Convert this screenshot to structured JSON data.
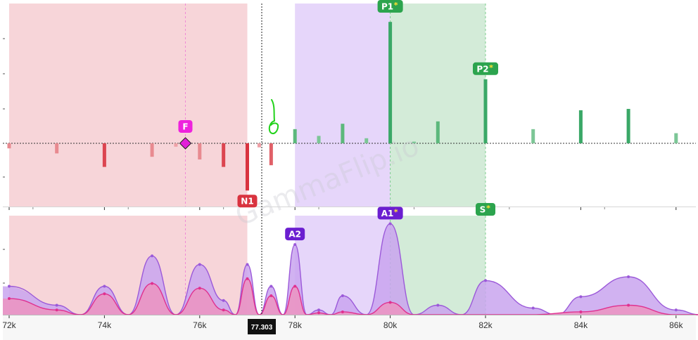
{
  "chart_data": {
    "type": "bar",
    "watermark": "GammaFlip.io",
    "x_unit_ticks": [
      "72k",
      "74k",
      "76k",
      "78k",
      "80k",
      "82k",
      "84k",
      "86k"
    ],
    "x_ticks": [
      72,
      74,
      76,
      78,
      80,
      82,
      84,
      86
    ],
    "xlim": [
      72,
      86.8
    ],
    "current_price": 77.303,
    "current_price_label": "77.303",
    "flip_level": 75.7,
    "regions": [
      {
        "name": "negative",
        "from": 72,
        "to": 77.0,
        "color": "#f7d5d9"
      },
      {
        "name": "purple",
        "from": 78.0,
        "to": 80.0,
        "color": "#e6d6fa"
      },
      {
        "name": "green",
        "from": 80.0,
        "to": 82.0,
        "color": "#d3ebd8"
      }
    ],
    "top_panel": {
      "ylim": [
        -1.8,
        4.0
      ],
      "bars": [
        {
          "x": 72.0,
          "v": -0.15,
          "c": "#e88a90"
        },
        {
          "x": 73.0,
          "v": -0.3,
          "c": "#e88a90"
        },
        {
          "x": 74.0,
          "v": -0.7,
          "c": "#dc4550"
        },
        {
          "x": 75.0,
          "v": -0.4,
          "c": "#e88a90"
        },
        {
          "x": 75.5,
          "v": -0.1,
          "c": "#eea0a6"
        },
        {
          "x": 76.0,
          "v": -0.48,
          "c": "#e88a90"
        },
        {
          "x": 76.5,
          "v": -0.7,
          "c": "#dc4550"
        },
        {
          "x": 77.0,
          "v": -1.4,
          "c": "#d9333f"
        },
        {
          "x": 77.25,
          "v": -0.12,
          "c": "#eea0a6"
        },
        {
          "x": 77.5,
          "v": -0.65,
          "c": "#e06068"
        },
        {
          "x": 78.0,
          "v": 0.42,
          "c": "#5cb87c"
        },
        {
          "x": 78.5,
          "v": 0.22,
          "c": "#7cc696"
        },
        {
          "x": 79.0,
          "v": 0.58,
          "c": "#5cb87c"
        },
        {
          "x": 79.5,
          "v": 0.15,
          "c": "#7cc696"
        },
        {
          "x": 80.0,
          "v": 3.6,
          "c": "#3aa867"
        },
        {
          "x": 80.5,
          "v": 0.05,
          "c": "#7cc696"
        },
        {
          "x": 81.0,
          "v": 0.65,
          "c": "#5cb87c"
        },
        {
          "x": 82.0,
          "v": 1.9,
          "c": "#3aa867"
        },
        {
          "x": 83.0,
          "v": 0.42,
          "c": "#7cc696"
        },
        {
          "x": 84.0,
          "v": 0.98,
          "c": "#3aa867"
        },
        {
          "x": 85.0,
          "v": 1.02,
          "c": "#3aa867"
        },
        {
          "x": 86.0,
          "v": 0.3,
          "c": "#7cc696"
        }
      ],
      "badges": [
        {
          "label": "P1",
          "star": "*",
          "x": 80.0,
          "anchor": "top",
          "color": "#2ca44e"
        },
        {
          "label": "P2",
          "star": "*",
          "x": 82.0,
          "anchor": "bar",
          "color": "#2ca44e"
        },
        {
          "label": "N1",
          "star": "",
          "x": 77.0,
          "anchor": "bar-neg",
          "color": "#d9333f"
        },
        {
          "label": "F",
          "star": "",
          "x": 75.7,
          "anchor": "flip",
          "color": "#ee22dd"
        },
        {
          "label": "S",
          "star": "*",
          "x": 82.0,
          "anchor": "bottom",
          "color": "#2ca44e"
        }
      ]
    },
    "bottom_panel": {
      "ylim": [
        0,
        1.0
      ],
      "series": [
        {
          "role": "upper",
          "color": "#9b59d9",
          "fill": "#c9a5ee",
          "points": [
            [
              72,
              0.3
            ],
            [
              73,
              0.1
            ],
            [
              73.5,
              0.0
            ],
            [
              74,
              0.3
            ],
            [
              74.5,
              0.0
            ],
            [
              75,
              0.62
            ],
            [
              75.5,
              0.0
            ],
            [
              76,
              0.53
            ],
            [
              76.5,
              0.15
            ],
            [
              76.75,
              0.0
            ],
            [
              77,
              0.53
            ],
            [
              77.25,
              0.0
            ],
            [
              77.5,
              0.3
            ],
            [
              77.75,
              0.0
            ],
            [
              78,
              0.74
            ],
            [
              78.25,
              0.0
            ],
            [
              78.5,
              0.05
            ],
            [
              78.75,
              0.0
            ],
            [
              79,
              0.2
            ],
            [
              79.5,
              0.0
            ],
            [
              80,
              0.96
            ],
            [
              80.5,
              0.0
            ],
            [
              81,
              0.1
            ],
            [
              81.5,
              0.0
            ],
            [
              82,
              0.36
            ],
            [
              83,
              0.07
            ],
            [
              83.5,
              0.0
            ],
            [
              84,
              0.19
            ],
            [
              85,
              0.4
            ],
            [
              86,
              0.05
            ],
            [
              86.5,
              0.0
            ]
          ]
        },
        {
          "role": "lower",
          "color": "#e0308f",
          "fill": "#ec93c1",
          "points": [
            [
              72,
              0.17
            ],
            [
              73,
              0.05
            ],
            [
              73.5,
              0.0
            ],
            [
              74,
              0.22
            ],
            [
              74.5,
              0.0
            ],
            [
              75,
              0.33
            ],
            [
              75.5,
              0.0
            ],
            [
              76,
              0.28
            ],
            [
              76.5,
              0.05
            ],
            [
              76.75,
              0.0
            ],
            [
              77,
              0.38
            ],
            [
              77.25,
              0.0
            ],
            [
              77.5,
              0.2
            ],
            [
              77.75,
              0.0
            ],
            [
              78,
              0.3
            ],
            [
              78.25,
              0.0
            ],
            [
              78.5,
              0.02
            ],
            [
              78.75,
              0.0
            ],
            [
              79,
              0.03
            ],
            [
              79.5,
              0.0
            ],
            [
              80,
              0.13
            ],
            [
              80.5,
              0.0
            ],
            [
              81,
              0.0
            ],
            [
              82,
              0.0
            ],
            [
              83,
              0.0
            ],
            [
              84,
              0.03
            ],
            [
              85,
              0.1
            ],
            [
              86,
              0.0
            ],
            [
              86.5,
              0.0
            ]
          ]
        }
      ],
      "badges": [
        {
          "label": "A1",
          "star": "*",
          "x": 80.0,
          "v": 0.96,
          "color": "#6b1ed0"
        },
        {
          "label": "A2",
          "star": "",
          "x": 78.0,
          "v": 0.74,
          "color": "#6b1ed0"
        }
      ]
    }
  }
}
